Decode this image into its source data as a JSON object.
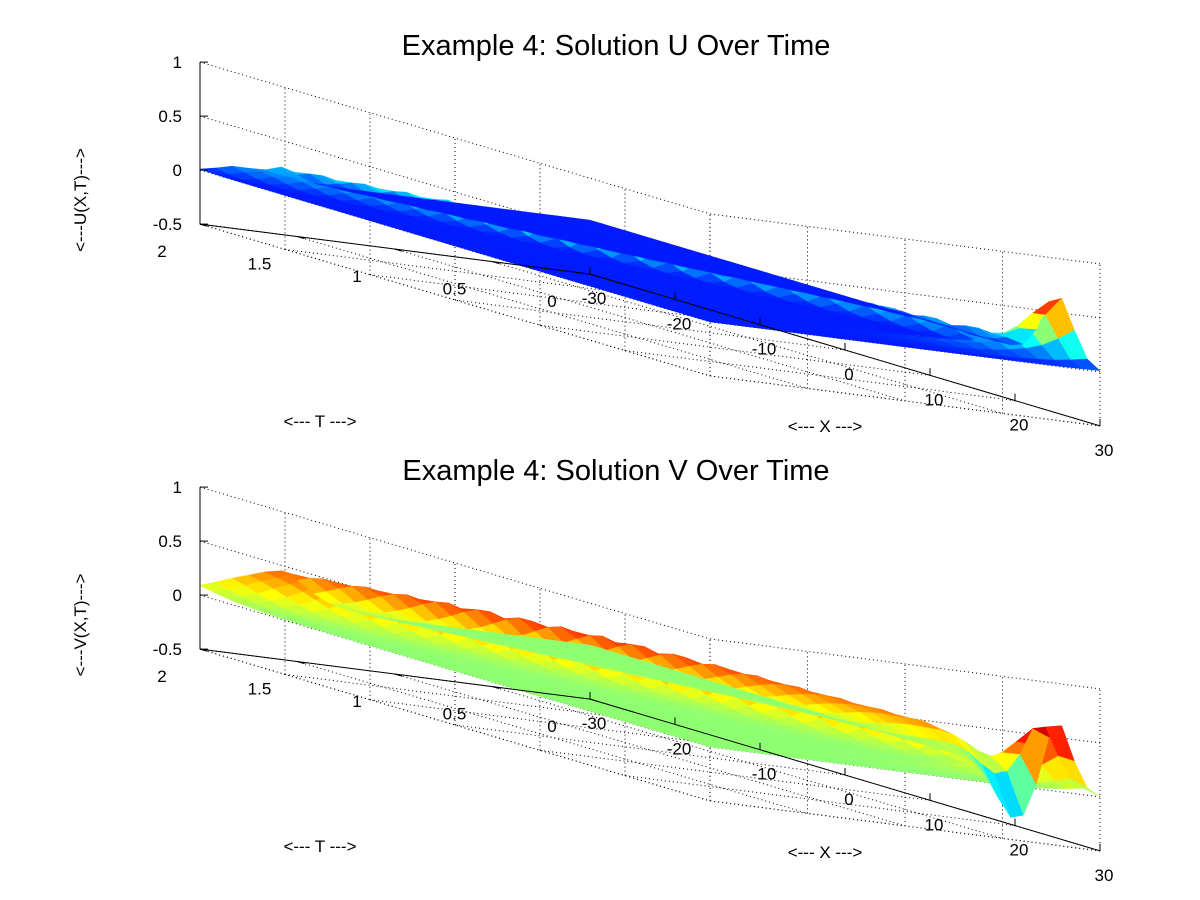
{
  "chart_data": [
    {
      "type": "surface",
      "title": "Example 4: Solution U Over Time",
      "xlabel": "<--- X --->",
      "ylabel": "<--- T --->",
      "zlabel": "<---U(X,T)--->",
      "xlim": [
        -30,
        30
      ],
      "ylim": [
        0,
        2
      ],
      "zlim": [
        -0.5,
        1
      ],
      "x_ticks": [
        "-30",
        "-20",
        "-10",
        "0",
        "10",
        "20",
        "30"
      ],
      "t_ticks": [
        "0",
        "0.5",
        "1",
        "1.5",
        "2"
      ],
      "z_ticks": [
        "-0.5",
        "0",
        "0.5",
        "1"
      ],
      "grid": true,
      "colormap": "jet",
      "shape": "pulse",
      "peak": {
        "x": 25,
        "t": 0,
        "value": 0.6
      }
    },
    {
      "type": "surface",
      "title": "Example 4: Solution V Over Time",
      "xlabel": "<--- X --->",
      "ylabel": "<--- T --->",
      "zlabel": "<---V(X,T)--->",
      "xlim": [
        -30,
        30
      ],
      "ylim": [
        0,
        2
      ],
      "zlim": [
        -0.5,
        1
      ],
      "x_ticks": [
        "-30",
        "-20",
        "-10",
        "0",
        "10",
        "20",
        "30"
      ],
      "t_ticks": [
        "0",
        "0.5",
        "1",
        "1.5",
        "2"
      ],
      "z_ticks": [
        "-0.5",
        "0",
        "0.5",
        "1"
      ],
      "grid": true,
      "colormap": "jet",
      "shape": "dipole",
      "peak": {
        "x": 25,
        "t": 0,
        "value": 0.6
      },
      "trough": {
        "x": 22,
        "t": 0,
        "value": -0.45
      }
    }
  ]
}
